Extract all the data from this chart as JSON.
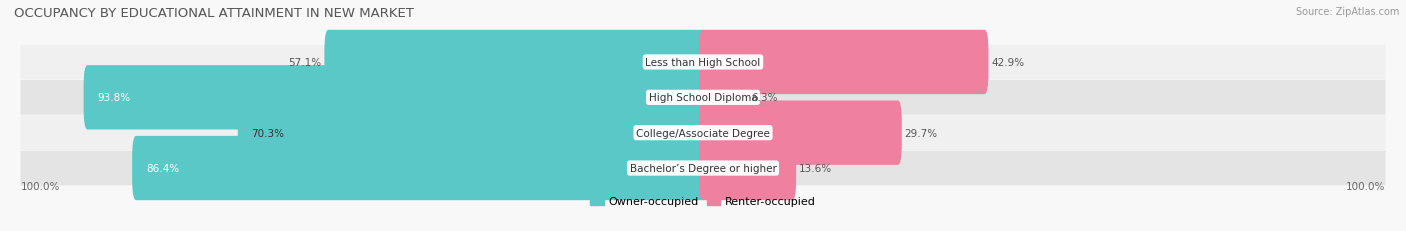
{
  "title": "OCCUPANCY BY EDUCATIONAL ATTAINMENT IN NEW MARKET",
  "source": "Source: ZipAtlas.com",
  "categories": [
    "Less than High School",
    "High School Diploma",
    "College/Associate Degree",
    "Bachelor’s Degree or higher"
  ],
  "owner_pct": [
    57.1,
    93.8,
    70.3,
    86.4
  ],
  "renter_pct": [
    42.9,
    6.3,
    29.7,
    13.6
  ],
  "owner_color": "#5BC8C8",
  "renter_color": "#F080A0",
  "row_bg_colors": [
    "#F0F0F0",
    "#E4E4E4",
    "#F0F0F0",
    "#E4E4E4"
  ],
  "title_fontsize": 9.5,
  "label_fontsize": 7.5,
  "pct_fontsize": 7.5,
  "legend_fontsize": 8,
  "source_fontsize": 7,
  "axis_tick_fontsize": 7.5
}
